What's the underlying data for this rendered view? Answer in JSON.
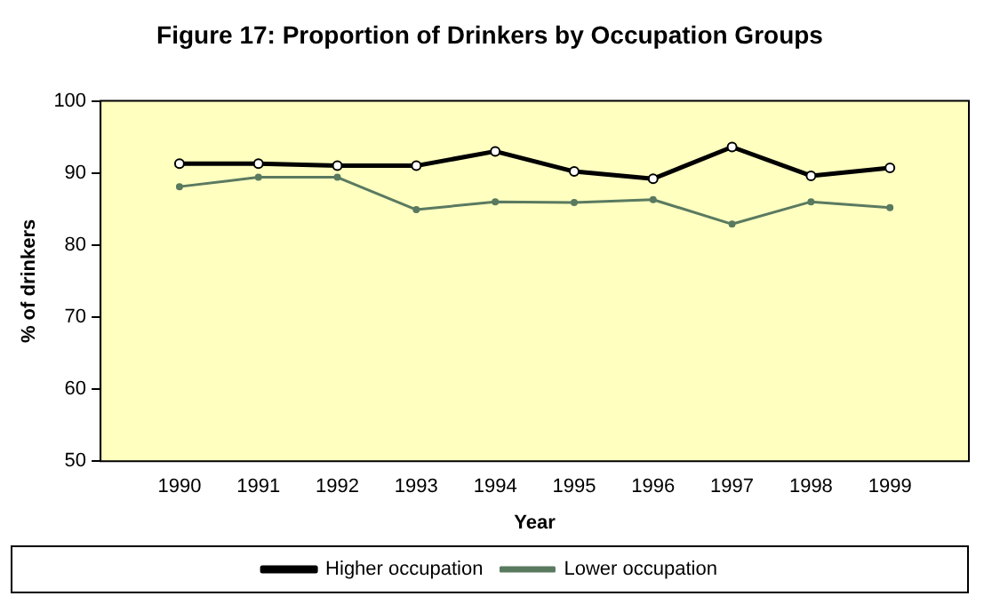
{
  "chart_data": {
    "type": "line",
    "title": "Figure 17: Proportion of Drinkers by Occupation Groups",
    "xlabel": "Year",
    "ylabel": "% of drinkers",
    "x": [
      1990,
      1991,
      1992,
      1993,
      1994,
      1995,
      1996,
      1997,
      1998,
      1999
    ],
    "xlim": [
      1989,
      2000
    ],
    "xticks": [
      1990,
      1991,
      1992,
      1993,
      1994,
      1995,
      1996,
      1997,
      1998,
      1999
    ],
    "ylim": [
      50,
      100
    ],
    "yticks": [
      50,
      60,
      70,
      80,
      90,
      100
    ],
    "series": [
      {
        "name": "Higher occupation",
        "color": "#000000",
        "values": [
          91.3,
          91.3,
          91,
          91,
          93,
          90.2,
          89.2,
          93.6,
          89.6,
          90.7
        ]
      },
      {
        "name": "Lower occupation",
        "color": "#5a7a60",
        "values": [
          88.1,
          89.4,
          89.4,
          84.9,
          86,
          85.9,
          86.3,
          82.9,
          86,
          85.2
        ]
      }
    ],
    "grid": false,
    "legend": "bottom",
    "marker": "circle",
    "line_style": "solid"
  }
}
